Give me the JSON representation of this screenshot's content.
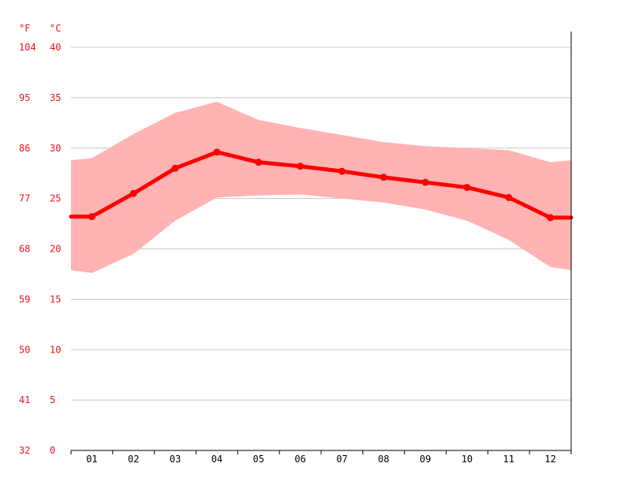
{
  "chart_data": {
    "type": "line",
    "title": "",
    "xlabel": "",
    "ylabel": "",
    "categories": [
      "01",
      "02",
      "03",
      "04",
      "05",
      "06",
      "07",
      "08",
      "09",
      "10",
      "11",
      "12"
    ],
    "ylim": [
      0,
      40
    ],
    "y_ticks_c": [
      "0",
      "5",
      "10",
      "15",
      "20",
      "25",
      "30",
      "35",
      "40"
    ],
    "y_ticks_f": [
      "32",
      "41",
      "50",
      "59",
      "68",
      "77",
      "86",
      "95",
      "104"
    ],
    "unit_f": "°F",
    "unit_c": "°C",
    "grid": true,
    "legend": "none",
    "series": [
      {
        "values": [
          23.2,
          25.5,
          28.0,
          29.6,
          28.6,
          28.2,
          27.7,
          27.1,
          26.6,
          26.1,
          25.1,
          23.1
        ]
      }
    ],
    "band": {
      "upper": [
        29.0,
        31.4,
        33.5,
        34.6,
        32.8,
        32.0,
        31.3,
        30.6,
        30.2,
        30.0,
        29.8,
        28.6
      ],
      "lower": [
        17.6,
        19.5,
        22.8,
        25.1,
        25.3,
        25.4,
        25.0,
        24.6,
        23.9,
        22.8,
        20.9,
        18.2
      ],
      "edge_upper": 28.8,
      "edge_lower": 17.9
    },
    "colors": {
      "line": "#ff0000",
      "band": "#ffb3b3",
      "axis_labels": "#e8141b",
      "grid": "#c8c8c8"
    }
  }
}
